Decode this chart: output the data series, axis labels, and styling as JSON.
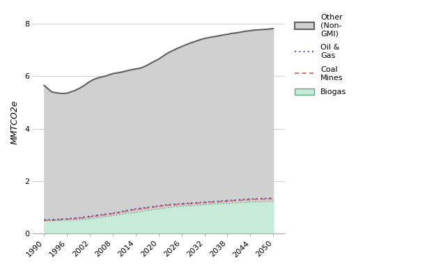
{
  "years": [
    1990,
    1991,
    1992,
    1993,
    1994,
    1995,
    1996,
    1997,
    1998,
    1999,
    2000,
    2001,
    2002,
    2003,
    2004,
    2005,
    2006,
    2007,
    2008,
    2009,
    2010,
    2011,
    2012,
    2013,
    2014,
    2015,
    2016,
    2017,
    2018,
    2019,
    2020,
    2021,
    2022,
    2023,
    2024,
    2025,
    2026,
    2027,
    2028,
    2029,
    2030,
    2031,
    2032,
    2033,
    2034,
    2035,
    2036,
    2037,
    2038,
    2039,
    2040,
    2041,
    2042,
    2043,
    2044,
    2045,
    2046,
    2047,
    2048,
    2049,
    2050
  ],
  "other_non_gmi": [
    5.65,
    5.52,
    5.4,
    5.37,
    5.35,
    5.34,
    5.35,
    5.4,
    5.45,
    5.52,
    5.6,
    5.7,
    5.8,
    5.88,
    5.93,
    5.97,
    6.0,
    6.05,
    6.1,
    6.12,
    6.15,
    6.18,
    6.22,
    6.25,
    6.28,
    6.3,
    6.35,
    6.42,
    6.5,
    6.58,
    6.65,
    6.75,
    6.85,
    6.93,
    7.0,
    7.07,
    7.13,
    7.19,
    7.25,
    7.3,
    7.35,
    7.4,
    7.44,
    7.47,
    7.5,
    7.52,
    7.55,
    7.58,
    7.6,
    7.63,
    7.65,
    7.67,
    7.7,
    7.72,
    7.74,
    7.76,
    7.77,
    7.78,
    7.79,
    7.8,
    7.82
  ],
  "oil_gas": [
    0.52,
    0.52,
    0.52,
    0.53,
    0.54,
    0.55,
    0.56,
    0.57,
    0.58,
    0.59,
    0.61,
    0.63,
    0.65,
    0.67,
    0.69,
    0.71,
    0.73,
    0.75,
    0.77,
    0.79,
    0.82,
    0.85,
    0.88,
    0.91,
    0.93,
    0.95,
    0.97,
    0.99,
    1.01,
    1.03,
    1.05,
    1.07,
    1.09,
    1.1,
    1.11,
    1.12,
    1.13,
    1.14,
    1.15,
    1.16,
    1.17,
    1.18,
    1.19,
    1.2,
    1.21,
    1.22,
    1.23,
    1.24,
    1.25,
    1.26,
    1.27,
    1.28,
    1.29,
    1.3,
    1.31,
    1.32,
    1.32,
    1.33,
    1.33,
    1.34,
    1.34
  ],
  "coal_mines": [
    0.5,
    0.5,
    0.5,
    0.51,
    0.52,
    0.53,
    0.54,
    0.55,
    0.56,
    0.57,
    0.59,
    0.61,
    0.63,
    0.65,
    0.67,
    0.69,
    0.71,
    0.73,
    0.75,
    0.77,
    0.8,
    0.83,
    0.86,
    0.89,
    0.91,
    0.93,
    0.95,
    0.97,
    0.99,
    1.01,
    1.03,
    1.05,
    1.07,
    1.08,
    1.09,
    1.1,
    1.11,
    1.12,
    1.13,
    1.14,
    1.15,
    1.16,
    1.17,
    1.18,
    1.19,
    1.2,
    1.21,
    1.22,
    1.23,
    1.24,
    1.25,
    1.26,
    1.27,
    1.28,
    1.29,
    1.3,
    1.3,
    1.31,
    1.31,
    1.32,
    1.32
  ],
  "biogas": [
    0.48,
    0.48,
    0.48,
    0.49,
    0.49,
    0.5,
    0.5,
    0.51,
    0.51,
    0.52,
    0.53,
    0.54,
    0.55,
    0.57,
    0.59,
    0.61,
    0.63,
    0.65,
    0.67,
    0.69,
    0.72,
    0.74,
    0.76,
    0.78,
    0.8,
    0.82,
    0.84,
    0.87,
    0.89,
    0.91,
    0.93,
    0.95,
    0.97,
    0.99,
    1.01,
    1.02,
    1.03,
    1.04,
    1.05,
    1.06,
    1.07,
    1.08,
    1.09,
    1.1,
    1.11,
    1.12,
    1.13,
    1.14,
    1.15,
    1.15,
    1.16,
    1.17,
    1.18,
    1.18,
    1.19,
    1.2,
    1.2,
    1.21,
    1.21,
    1.22,
    1.22
  ],
  "other_color": "#d0d0d0",
  "other_line_color": "#606060",
  "oil_gas_color": "#5555aa",
  "coal_mines_color": "#e07070",
  "biogas_color": "#c8ead8",
  "biogas_line_color": "#5aaa80",
  "ylabel": "MMTCO2e",
  "ylim": [
    0,
    8.5
  ],
  "yticks": [
    0,
    2,
    4,
    6,
    8
  ],
  "xticks": [
    1990,
    1996,
    2002,
    2008,
    2014,
    2020,
    2026,
    2032,
    2038,
    2044,
    2050
  ],
  "background_color": "#ffffff",
  "grid_color": "#cccccc"
}
